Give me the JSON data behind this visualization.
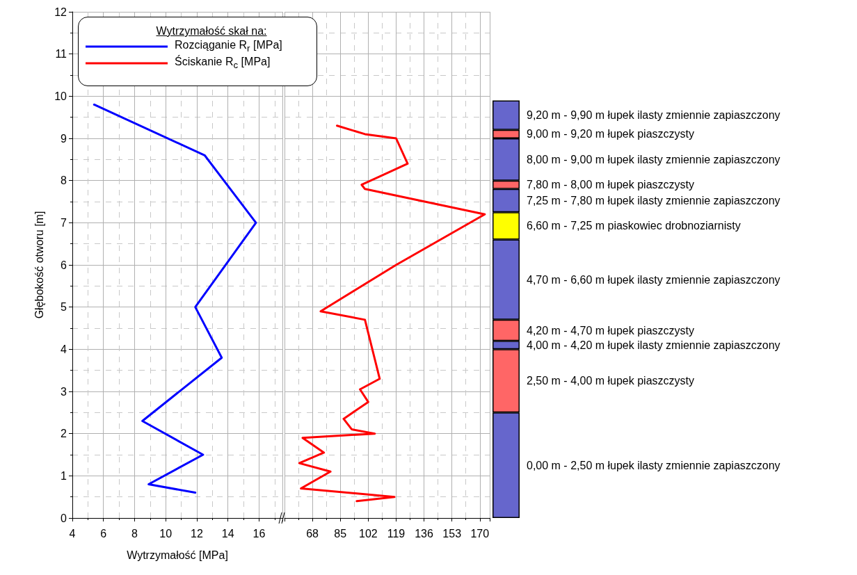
{
  "chart_data": [
    {
      "type": "line",
      "xlabel": "Wytrzymałość [MPa]",
      "ylabel": "Głębokość otworu [m]",
      "legend_title": "Wytrzymałość skał na:",
      "legend": "top",
      "grid": true,
      "marker": "none",
      "line_style": "solid",
      "xlim": [
        4,
        17.5
      ],
      "xticks": [
        4,
        6,
        8,
        10,
        12,
        14,
        16
      ],
      "ylim": [
        0,
        12
      ],
      "yticks": [
        0,
        1,
        2,
        3,
        4,
        5,
        6,
        7,
        8,
        9,
        10,
        11,
        12
      ],
      "series": [
        {
          "name": "Rozciąganie R$_{r}$ [MPa]",
          "color": "#0000ff",
          "x": [
            11.9,
            8.9,
            12.4,
            8.5,
            13.6,
            11.9,
            15.8,
            12.5,
            5.4
          ],
          "values": [
            0.6,
            0.8,
            1.5,
            2.3,
            3.8,
            5.0,
            7.0,
            8.6,
            9.8
          ]
        }
      ]
    },
    {
      "type": "line",
      "grid": true,
      "marker": "none",
      "line_style": "solid",
      "tick_labels": "x",
      "xlim": [
        51,
        176
      ],
      "xticks": [
        68,
        85,
        102,
        119,
        136,
        153,
        170
      ],
      "ylim": [
        0,
        12
      ],
      "series": [
        {
          "name": "Ściskanie R$_{c}$ [MPa]",
          "color": "#ff0000",
          "x": [
            95,
            118,
            61,
            79,
            60,
            75,
            62,
            106,
            92,
            87,
            102,
            97,
            109,
            100,
            73,
            119,
            173,
            100,
            98,
            126,
            119,
            100,
            83
          ],
          "values": [
            0.4,
            0.5,
            0.7,
            1.1,
            1.3,
            1.55,
            1.9,
            2.0,
            2.1,
            2.35,
            2.75,
            3.05,
            3.3,
            4.7,
            4.9,
            6.0,
            7.2,
            7.8,
            7.9,
            8.4,
            9.0,
            9.1,
            9.3
          ]
        }
      ]
    },
    {
      "type": "bar",
      "stacked": true,
      "tick_labels": false,
      "categories": [
        null
      ],
      "ylim": [
        0,
        12
      ],
      "series": [
        {
          "color": "#6666cc",
          "values": [
            2.5
          ]
        },
        {
          "color": "#ff6666",
          "values": [
            1.5
          ]
        },
        {
          "color": "#6666cc",
          "values": [
            0.2
          ]
        },
        {
          "color": "#ff6666",
          "values": [
            0.5
          ]
        },
        {
          "color": "#6666cc",
          "values": [
            1.9
          ]
        },
        {
          "color": "#ffff00",
          "values": [
            0.65
          ]
        },
        {
          "color": "#6666cc",
          "values": [
            0.55
          ]
        },
        {
          "color": "#ff6666",
          "values": [
            0.2
          ]
        },
        {
          "color": "#6666cc",
          "values": [
            1.0
          ]
        },
        {
          "color": "#ff6666",
          "values": [
            0.2
          ]
        },
        {
          "color": "#6666cc",
          "values": [
            0.7
          ]
        }
      ],
      "annotations": [
        "0,00 m - 2,50 m łupek ilasty zmiennie zapiaszczony",
        "2,50 m - 4,00 m łupek piaszczysty",
        "4,00 m - 4,20 m łupek ilasty zmiennie zapiaszczony",
        "4,20 m - 4,70 m łupek piaszczysty",
        "4,70 m - 6,60 m łupek ilasty zmiennie zapiaszczony",
        "6,60 m - 7,25 m piaskowiec drobnoziarnisty",
        "7,25 m - 7,80 m łupek ilasty zmiennie zapiaszczony",
        "7,80 m - 8,00 m łupek piaszczysty",
        "8,00 m - 9,00 m łupek ilasty zmiennie zapiaszczony",
        "9,00 m - 9,20 m łupek piaszczysty",
        "9,20 m - 9,90 m łupek ilasty zmiennie zapiaszczony"
      ]
    }
  ]
}
